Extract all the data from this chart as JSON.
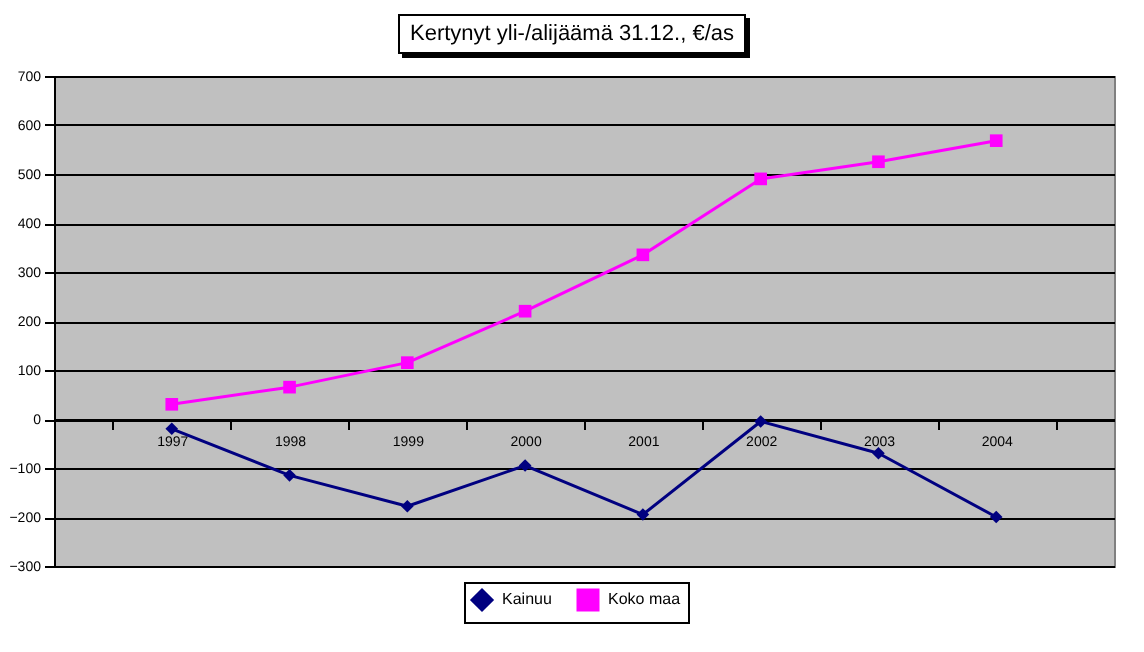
{
  "chart_data": {
    "type": "line",
    "title": "Kertynyt  yli-/alijäämä 31.12., €/as",
    "categories": [
      "1997",
      "1998",
      "1999",
      "2000",
      "2001",
      "2002",
      "2003",
      "2004"
    ],
    "series": [
      {
        "name": "Kainuu",
        "color": "#000080",
        "marker": "diamond",
        "values": [
          -20,
          -115,
          -178,
          -95,
          -195,
          -5,
          -70,
          -200
        ]
      },
      {
        "name": "Koko maa",
        "color": "#ff00ff",
        "marker": "square",
        "values": [
          30,
          65,
          115,
          220,
          335,
          490,
          525,
          568
        ]
      }
    ],
    "ylim": [
      -300,
      700
    ],
    "yticks": [
      -300,
      -200,
      -100,
      0,
      100,
      200,
      300,
      400,
      500,
      600,
      700
    ],
    "grid": "y",
    "legend": "bottom"
  }
}
